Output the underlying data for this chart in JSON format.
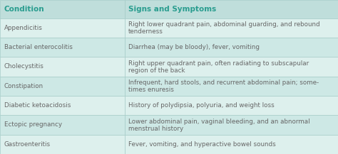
{
  "header": [
    "Condition",
    "Signs and Symptoms"
  ],
  "rows": [
    [
      "Appendicitis",
      "Right lower quadrant pain, abdominal guarding, and rebound\ntenderness"
    ],
    [
      "Bacterial enterocolitis",
      "Diarrhea (may be bloody), fever, vomiting"
    ],
    [
      "Cholecystitis",
      "Right upper quadrant pain, often radiating to subscapular\nregion of the back"
    ],
    [
      "Constipation",
      "Infrequent, hard stools, and recurrent abdominal pain; some-\ntimes enuresis"
    ],
    [
      "Diabetic ketoacidosis",
      "History of polydipsia, polyuria, and weight loss"
    ],
    [
      "Ectopic pregnancy",
      "Lower abdominal pain, vaginal bleeding, and an abnormal\nmenstrual history"
    ],
    [
      "Gastroenteritis",
      "Fever, vomiting, and hyperactive bowel sounds"
    ]
  ],
  "header_text_color": "#2a9d8f",
  "body_text_color": "#666666",
  "header_bg": "#bfdedb",
  "row_bg_odd": "#cde8e5",
  "row_bg_even": "#ddf0ed",
  "border_color": "#a0c8c4",
  "col_split": 0.37,
  "font_size": 6.3,
  "header_font_size": 7.5,
  "fig_width": 4.74,
  "fig_height": 2.17,
  "dpi": 100
}
